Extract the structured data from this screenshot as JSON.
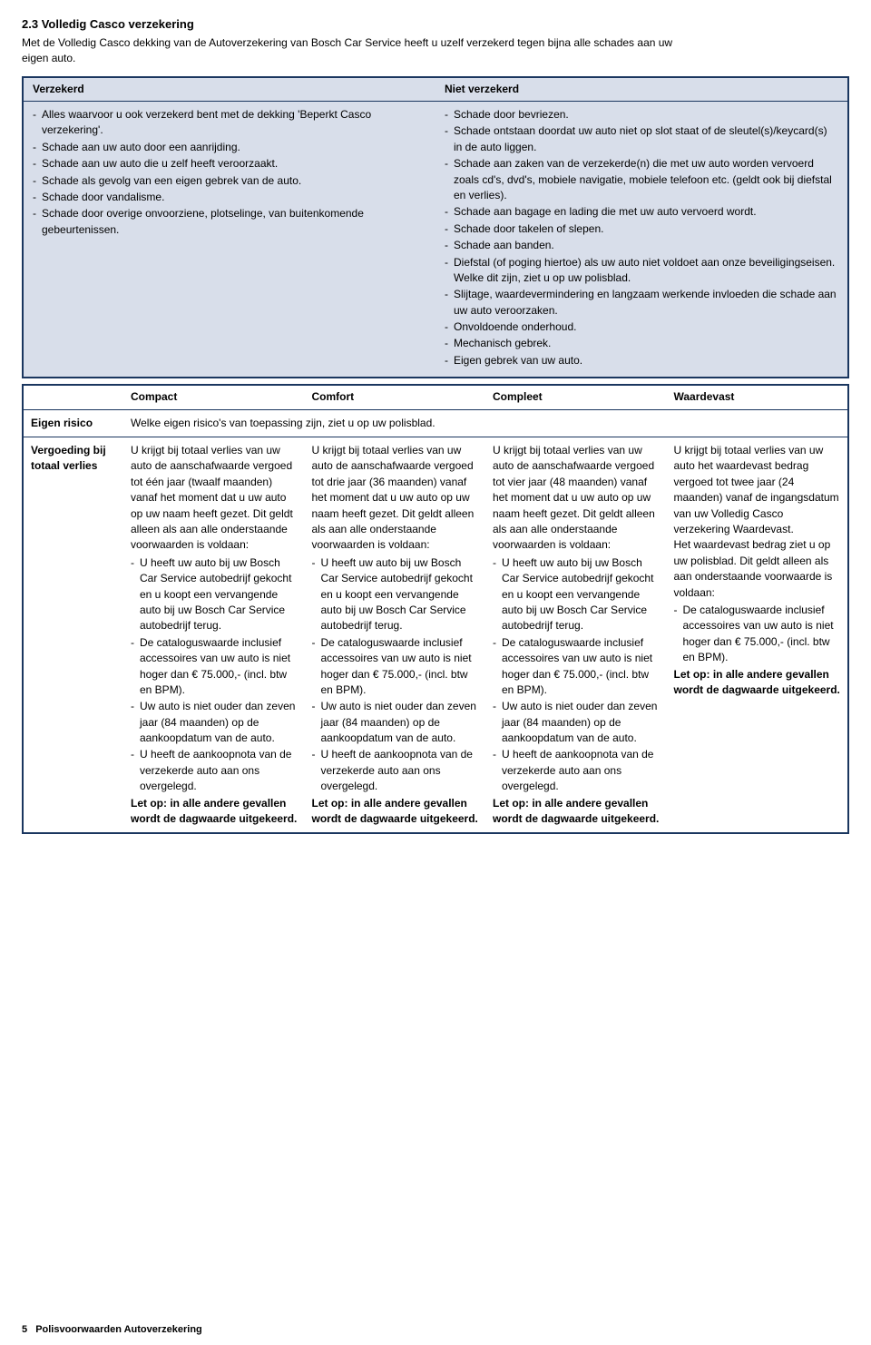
{
  "section": {
    "number": "2.3",
    "title": "Volledig Casco verzekering",
    "intro": "Met de Volledig Casco dekking van de Autoverzekering van Bosch Car Service heeft u uzelf verzekerd tegen bijna alle schades aan uw eigen auto."
  },
  "coverage": {
    "insured_header": "Verzekerd",
    "not_insured_header": "Niet verzekerd",
    "insured_items": [
      "Alles waarvoor u ook verzekerd bent met de dekking 'Beperkt Casco verzekering'.",
      "Schade aan uw auto door een aanrijding.",
      "Schade aan uw auto die u zelf heeft veroorzaakt.",
      "Schade als gevolg van een eigen gebrek van de auto.",
      "Schade door vandalisme.",
      "Schade door overige onvoorziene, plotselinge, van buitenkomende gebeurtenissen."
    ],
    "not_insured_items": [
      "Schade door bevriezen.",
      "Schade ontstaan doordat uw auto niet op slot staat of de sleutel(s)/keycard(s) in de auto liggen.",
      "Schade aan zaken van de verzekerde(n) die met uw auto worden vervoerd zoals cd's, dvd's, mobiele navigatie, mobiele telefoon etc. (geldt ook bij diefstal en verlies).",
      "Schade aan bagage en lading die met uw auto vervoerd wordt.",
      "Schade door takelen of slepen.",
      "Schade aan banden.",
      "Diefstal (of poging hiertoe) als uw auto niet voldoet aan onze beveiligingseisen. Welke dit zijn, ziet u op uw polisblad.",
      "Slijtage, waardevermindering en langzaam werkende invloeden die schade aan uw auto veroorzaken.",
      "Onvoldoende onderhoud.",
      "Mechanisch gebrek.",
      "Eigen gebrek van uw auto."
    ]
  },
  "packages": {
    "headers": [
      "Compact",
      "Comfort",
      "Compleet",
      "Waardevast"
    ],
    "eigen_risico_label": "Eigen risico",
    "eigen_risico_text": "Welke eigen risico's van toepassing zijn, ziet u op uw polisblad.",
    "vergoeding_label": "Vergoeding bij totaal verlies",
    "compact": {
      "intro": "U krijgt bij totaal verlies van uw auto de aanschafwaarde vergoed tot één jaar (twaalf maanden) vanaf het moment dat u uw auto op uw naam heeft gezet. Dit geldt alleen als aan alle onderstaande voorwaarden is voldaan:",
      "items": [
        "U heeft uw auto bij uw Bosch Car Service autobedrijf gekocht en u koopt een vervangende auto bij uw Bosch Car Service autobedrijf terug.",
        "De cataloguswaarde inclusief accessoires van uw auto is niet hoger dan € 75.000,- (incl. btw en BPM).",
        "Uw auto is niet ouder dan zeven jaar (84 maanden) op de aankoopdatum van de auto.",
        "U heeft de aankoopnota van de verzekerde auto aan ons overgelegd."
      ],
      "note": "Let op: in alle andere gevallen wordt de dagwaarde uitgekeerd."
    },
    "comfort": {
      "intro": "U krijgt bij totaal verlies van uw auto de aanschafwaarde vergoed tot drie jaar (36 maanden) vanaf het moment dat u uw auto op uw naam heeft gezet. Dit geldt alleen als aan alle onderstaande voorwaarden is voldaan:",
      "items": [
        "U heeft uw auto bij uw Bosch Car Service autobedrijf gekocht en u koopt een vervangende auto bij uw Bosch Car Service autobedrijf terug.",
        "De cataloguswaarde inclusief accessoires van uw auto is niet hoger dan € 75.000,- (incl. btw en BPM).",
        "Uw auto is niet ouder dan zeven jaar (84 maanden) op de aankoopdatum van de auto.",
        "U heeft de aankoopnota van de verzekerde auto aan ons overgelegd."
      ],
      "note": "Let op: in alle andere gevallen wordt de dagwaarde uitgekeerd."
    },
    "compleet": {
      "intro": "U krijgt bij totaal verlies van uw auto de aanschafwaarde vergoed tot vier jaar (48 maanden) vanaf het moment dat u uw auto op uw naam heeft gezet. Dit geldt alleen als aan alle onderstaande voorwaarden is voldaan:",
      "items": [
        "U heeft uw auto bij uw Bosch Car Service autobedrijf gekocht en u koopt een vervangende auto bij uw Bosch Car Service autobedrijf terug.",
        "De cataloguswaarde inclusief accessoires van uw auto is niet hoger dan € 75.000,- (incl. btw en BPM).",
        "Uw auto is niet ouder dan zeven jaar (84 maanden) op de aankoopdatum van de auto.",
        "U heeft de aankoopnota van de verzekerde auto aan ons overgelegd."
      ],
      "note": "Let op: in alle andere gevallen wordt de dagwaarde uitgekeerd."
    },
    "waardevast": {
      "intro": "U krijgt bij totaal verlies van uw auto het waardevast bedrag vergoed tot twee jaar (24 maanden) vanaf de ingangsdatum van uw Volledig Casco verzekering Waardevast.",
      "extra": "Het waardevast bedrag ziet u op uw polisblad. Dit geldt alleen als aan onderstaande voorwaarde is voldaan:",
      "items": [
        "De cataloguswaarde inclusief accessoires van uw auto is niet hoger dan € 75.000,- (incl. btw en BPM)."
      ],
      "note": "Let op: in alle andere gevallen wordt de dagwaarde uitgekeerd."
    }
  },
  "footer": {
    "page": "5",
    "title": "Polisvoorwaarden Autoverzekering"
  }
}
